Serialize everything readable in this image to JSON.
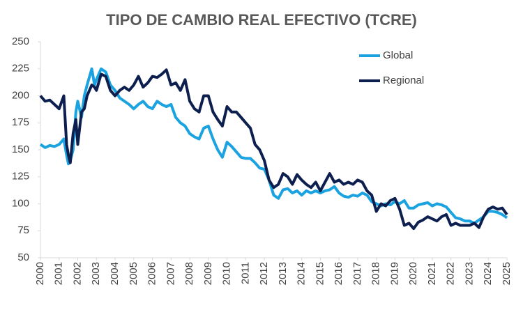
{
  "chart_data": {
    "type": "line",
    "title": "TIPO DE CAMBIO REAL EFECTIVO (TCRE)",
    "x": [
      2000,
      2000.25,
      2000.5,
      2000.75,
      2001,
      2001.25,
      2001.4,
      2001.5,
      2001.6,
      2001.75,
      2001.9,
      2002,
      2002.2,
      2002.35,
      2002.5,
      2002.75,
      2002.9,
      2003,
      2003.25,
      2003.5,
      2003.75,
      2004,
      2004.25,
      2004.5,
      2004.75,
      2005,
      2005.25,
      2005.5,
      2005.75,
      2006,
      2006.25,
      2006.5,
      2006.75,
      2007,
      2007.25,
      2007.5,
      2007.75,
      2008,
      2008.25,
      2008.5,
      2008.75,
      2009,
      2009.25,
      2009.5,
      2009.75,
      2010,
      2010.25,
      2010.5,
      2010.75,
      2011,
      2011.25,
      2011.5,
      2011.75,
      2012,
      2012.25,
      2012.5,
      2012.75,
      2013,
      2013.25,
      2013.5,
      2013.75,
      2014,
      2014.25,
      2014.5,
      2014.75,
      2015,
      2015.25,
      2015.5,
      2015.75,
      2016,
      2016.25,
      2016.5,
      2016.75,
      2017,
      2017.25,
      2017.5,
      2017.75,
      2018,
      2018.25,
      2018.5,
      2018.75,
      2019,
      2019.25,
      2019.5,
      2019.75,
      2020,
      2020.25,
      2020.5,
      2020.75,
      2021,
      2021.25,
      2021.5,
      2021.75,
      2022,
      2022.25,
      2022.5,
      2022.75,
      2023,
      2023.25,
      2023.5,
      2023.75,
      2024,
      2024.25,
      2024.5,
      2024.75,
      2025
    ],
    "series": [
      {
        "name": "Global",
        "color": "#1aa3e0",
        "values": [
          155,
          152,
          154,
          153,
          155,
          160,
          145,
          137,
          140,
          150,
          185,
          195,
          180,
          200,
          210,
          225,
          210,
          215,
          225,
          222,
          210,
          205,
          198,
          195,
          192,
          188,
          192,
          195,
          190,
          188,
          195,
          192,
          190,
          192,
          180,
          175,
          172,
          165,
          162,
          160,
          170,
          172,
          160,
          150,
          143,
          157,
          153,
          148,
          143,
          142,
          142,
          138,
          133,
          132,
          122,
          108,
          105,
          113,
          114,
          110,
          112,
          108,
          112,
          110,
          112,
          110,
          112,
          113,
          116,
          110,
          107,
          106,
          108,
          107,
          110,
          108,
          102,
          100,
          98,
          100,
          99,
          102,
          100,
          103,
          96,
          96,
          99,
          100,
          101,
          98,
          100,
          99,
          97,
          92,
          87,
          86,
          84,
          84,
          82,
          85,
          88,
          93,
          93,
          92,
          90,
          87
        ]
      },
      {
        "name": "Regional",
        "color": "#0d1f4e",
        "values": [
          200,
          195,
          196,
          192,
          188,
          200,
          155,
          145,
          138,
          165,
          178,
          155,
          185,
          188,
          200,
          210,
          208,
          205,
          220,
          218,
          205,
          200,
          205,
          208,
          205,
          210,
          218,
          208,
          212,
          218,
          217,
          220,
          224,
          210,
          212,
          205,
          215,
          195,
          188,
          185,
          200,
          200,
          185,
          178,
          172,
          190,
          185,
          185,
          180,
          175,
          170,
          155,
          150,
          140,
          122,
          115,
          118,
          128,
          125,
          118,
          127,
          122,
          118,
          115,
          120,
          112,
          120,
          128,
          120,
          122,
          118,
          120,
          118,
          122,
          120,
          112,
          108,
          93,
          100,
          98,
          103,
          105,
          95,
          80,
          82,
          77,
          83,
          85,
          88,
          86,
          84,
          88,
          90,
          80,
          82,
          80,
          80,
          80,
          82,
          78,
          88,
          95,
          97,
          95,
          96,
          90
        ]
      }
    ],
    "xlim": [
      2000,
      2025
    ],
    "xticks": [
      2000,
      2001,
      2002,
      2003,
      2004,
      2005,
      2006,
      2007,
      2008,
      2009,
      2010,
      2011,
      2012,
      2013,
      2014,
      2015,
      2016,
      2017,
      2018,
      2019,
      2020,
      2021,
      2022,
      2023,
      2024,
      2025
    ],
    "ylim": [
      50,
      250
    ],
    "yticks": [
      50,
      75,
      100,
      125,
      150,
      175,
      200,
      225,
      250
    ],
    "grid": false,
    "legend": "upper right"
  }
}
